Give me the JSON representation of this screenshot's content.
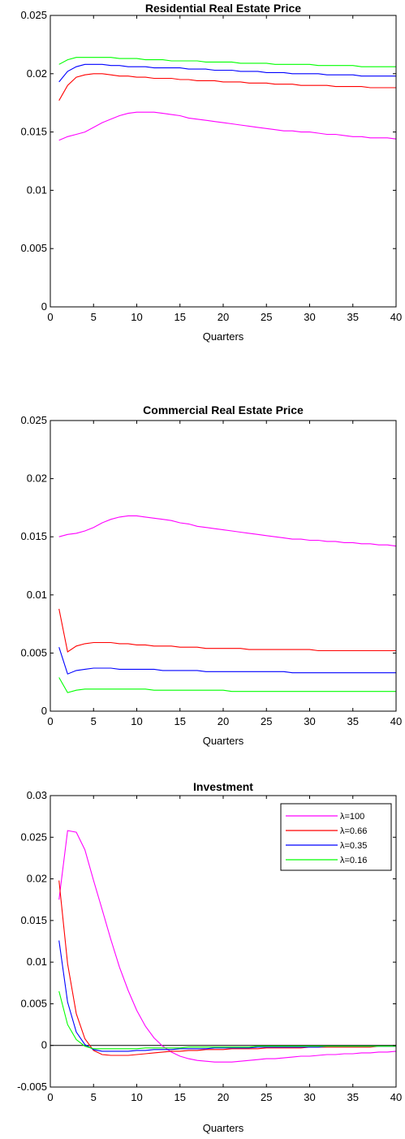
{
  "chart_data": [
    {
      "type": "line",
      "title": "Residential Real Estate Price",
      "xlabel": "Quarters",
      "ylabel": "",
      "xlim": [
        0,
        40
      ],
      "ylim": [
        0,
        0.025
      ],
      "x_ticks": [
        0,
        5,
        10,
        15,
        20,
        25,
        30,
        35,
        40
      ],
      "y_ticks": [
        0,
        0.005,
        0.01,
        0.015,
        0.02,
        0.025
      ],
      "x_tick_labels": [
        "0",
        "5",
        "10",
        "15",
        "20",
        "25",
        "30",
        "35",
        "40"
      ],
      "y_tick_labels": [
        "0",
        "0.005",
        "0.01",
        "0.015",
        "0.02",
        "0.025"
      ],
      "grid": false,
      "zero_line": false,
      "x": [
        1,
        2,
        3,
        4,
        5,
        6,
        7,
        8,
        9,
        10,
        11,
        12,
        13,
        14,
        15,
        16,
        17,
        18,
        19,
        20,
        21,
        22,
        23,
        24,
        25,
        26,
        27,
        28,
        29,
        30,
        31,
        32,
        33,
        34,
        35,
        36,
        37,
        38,
        39,
        40
      ],
      "series": [
        {
          "color": "#ff00ff",
          "values": [
            0.0143,
            0.0146,
            0.0148,
            0.015,
            0.0154,
            0.0158,
            0.0161,
            0.0164,
            0.0166,
            0.0167,
            0.0167,
            0.0167,
            0.0166,
            0.0165,
            0.0164,
            0.0162,
            0.0161,
            0.016,
            0.0159,
            0.0158,
            0.0157,
            0.0156,
            0.0155,
            0.0154,
            0.0153,
            0.0152,
            0.0151,
            0.0151,
            0.015,
            0.015,
            0.0149,
            0.0148,
            0.0148,
            0.0147,
            0.0146,
            0.0146,
            0.0145,
            0.0145,
            0.0145,
            0.0144
          ]
        },
        {
          "color": "#ff0000",
          "values": [
            0.0177,
            0.019,
            0.0197,
            0.0199,
            0.02,
            0.02,
            0.0199,
            0.0198,
            0.0198,
            0.0197,
            0.0197,
            0.0196,
            0.0196,
            0.0196,
            0.0195,
            0.0195,
            0.0194,
            0.0194,
            0.0194,
            0.0193,
            0.0193,
            0.0193,
            0.0192,
            0.0192,
            0.0192,
            0.0191,
            0.0191,
            0.0191,
            0.019,
            0.019,
            0.019,
            0.019,
            0.0189,
            0.0189,
            0.0189,
            0.0189,
            0.0188,
            0.0188,
            0.0188,
            0.0188
          ]
        },
        {
          "color": "#0000ff",
          "values": [
            0.0193,
            0.0202,
            0.0206,
            0.0208,
            0.0208,
            0.0208,
            0.0207,
            0.0207,
            0.0206,
            0.0206,
            0.0206,
            0.0205,
            0.0205,
            0.0205,
            0.0205,
            0.0204,
            0.0204,
            0.0204,
            0.0203,
            0.0203,
            0.0203,
            0.0202,
            0.0202,
            0.0202,
            0.0201,
            0.0201,
            0.0201,
            0.02,
            0.02,
            0.02,
            0.02,
            0.0199,
            0.0199,
            0.0199,
            0.0199,
            0.0198,
            0.0198,
            0.0198,
            0.0198,
            0.0198
          ]
        },
        {
          "color": "#00ff00",
          "values": [
            0.0208,
            0.0212,
            0.0214,
            0.0214,
            0.0214,
            0.0214,
            0.0214,
            0.0213,
            0.0213,
            0.0213,
            0.0212,
            0.0212,
            0.0212,
            0.0211,
            0.0211,
            0.0211,
            0.0211,
            0.021,
            0.021,
            0.021,
            0.021,
            0.0209,
            0.0209,
            0.0209,
            0.0209,
            0.0208,
            0.0208,
            0.0208,
            0.0208,
            0.0208,
            0.0207,
            0.0207,
            0.0207,
            0.0207,
            0.0207,
            0.0206,
            0.0206,
            0.0206,
            0.0206,
            0.0206
          ]
        }
      ]
    },
    {
      "type": "line",
      "title": "Commercial Real Estate Price",
      "xlabel": "Quarters",
      "ylabel": "",
      "xlim": [
        0,
        40
      ],
      "ylim": [
        0,
        0.025
      ],
      "x_ticks": [
        0,
        5,
        10,
        15,
        20,
        25,
        30,
        35,
        40
      ],
      "y_ticks": [
        0,
        0.005,
        0.01,
        0.015,
        0.02,
        0.025
      ],
      "x_tick_labels": [
        "0",
        "5",
        "10",
        "15",
        "20",
        "25",
        "30",
        "35",
        "40"
      ],
      "y_tick_labels": [
        "0",
        "0.005",
        "0.01",
        "0.015",
        "0.02",
        "0.025"
      ],
      "grid": false,
      "zero_line": false,
      "x": [
        1,
        2,
        3,
        4,
        5,
        6,
        7,
        8,
        9,
        10,
        11,
        12,
        13,
        14,
        15,
        16,
        17,
        18,
        19,
        20,
        21,
        22,
        23,
        24,
        25,
        26,
        27,
        28,
        29,
        30,
        31,
        32,
        33,
        34,
        35,
        36,
        37,
        38,
        39,
        40
      ],
      "series": [
        {
          "color": "#ff00ff",
          "values": [
            0.015,
            0.0152,
            0.0153,
            0.0155,
            0.0158,
            0.0162,
            0.0165,
            0.0167,
            0.0168,
            0.0168,
            0.0167,
            0.0166,
            0.0165,
            0.0164,
            0.0162,
            0.0161,
            0.0159,
            0.0158,
            0.0157,
            0.0156,
            0.0155,
            0.0154,
            0.0153,
            0.0152,
            0.0151,
            0.015,
            0.0149,
            0.0148,
            0.0148,
            0.0147,
            0.0147,
            0.0146,
            0.0146,
            0.0145,
            0.0145,
            0.0144,
            0.0144,
            0.0143,
            0.0143,
            0.0142
          ]
        },
        {
          "color": "#ff0000",
          "values": [
            0.0088,
            0.0051,
            0.0056,
            0.0058,
            0.0059,
            0.0059,
            0.0059,
            0.0058,
            0.0058,
            0.0057,
            0.0057,
            0.0056,
            0.0056,
            0.0056,
            0.0055,
            0.0055,
            0.0055,
            0.0054,
            0.0054,
            0.0054,
            0.0054,
            0.0054,
            0.0053,
            0.0053,
            0.0053,
            0.0053,
            0.0053,
            0.0053,
            0.0053,
            0.0053,
            0.0052,
            0.0052,
            0.0052,
            0.0052,
            0.0052,
            0.0052,
            0.0052,
            0.0052,
            0.0052,
            0.0052
          ]
        },
        {
          "color": "#0000ff",
          "values": [
            0.0055,
            0.0032,
            0.0035,
            0.0036,
            0.0037,
            0.0037,
            0.0037,
            0.0036,
            0.0036,
            0.0036,
            0.0036,
            0.0036,
            0.0035,
            0.0035,
            0.0035,
            0.0035,
            0.0035,
            0.0034,
            0.0034,
            0.0034,
            0.0034,
            0.0034,
            0.0034,
            0.0034,
            0.0034,
            0.0034,
            0.0034,
            0.0033,
            0.0033,
            0.0033,
            0.0033,
            0.0033,
            0.0033,
            0.0033,
            0.0033,
            0.0033,
            0.0033,
            0.0033,
            0.0033,
            0.0033
          ]
        },
        {
          "color": "#00ff00",
          "values": [
            0.0029,
            0.0016,
            0.0018,
            0.0019,
            0.0019,
            0.0019,
            0.0019,
            0.0019,
            0.0019,
            0.0019,
            0.0019,
            0.0018,
            0.0018,
            0.0018,
            0.0018,
            0.0018,
            0.0018,
            0.0018,
            0.0018,
            0.0018,
            0.0017,
            0.0017,
            0.0017,
            0.0017,
            0.0017,
            0.0017,
            0.0017,
            0.0017,
            0.0017,
            0.0017,
            0.0017,
            0.0017,
            0.0017,
            0.0017,
            0.0017,
            0.0017,
            0.0017,
            0.0017,
            0.0017,
            0.0017
          ]
        }
      ]
    },
    {
      "type": "line",
      "title": "Investment",
      "xlabel": "Quarters",
      "ylabel": "",
      "xlim": [
        0,
        40
      ],
      "ylim": [
        -0.005,
        0.03
      ],
      "x_ticks": [
        0,
        5,
        10,
        15,
        20,
        25,
        30,
        35,
        40
      ],
      "y_ticks": [
        -0.005,
        0,
        0.005,
        0.01,
        0.015,
        0.02,
        0.025,
        0.03
      ],
      "x_tick_labels": [
        "0",
        "5",
        "10",
        "15",
        "20",
        "25",
        "30",
        "35",
        "40"
      ],
      "y_tick_labels": [
        "-0.005",
        "0",
        "0.005",
        "0.01",
        "0.015",
        "0.02",
        "0.025",
        "0.03"
      ],
      "grid": false,
      "zero_line": true,
      "legend_position": "top-right",
      "x": [
        1,
        2,
        3,
        4,
        5,
        6,
        7,
        8,
        9,
        10,
        11,
        12,
        13,
        14,
        15,
        16,
        17,
        18,
        19,
        20,
        21,
        22,
        23,
        24,
        25,
        26,
        27,
        28,
        29,
        30,
        31,
        32,
        33,
        34,
        35,
        36,
        37,
        38,
        39,
        40
      ],
      "series": [
        {
          "name": "λ=100",
          "color": "#ff00ff",
          "values": [
            0.0175,
            0.0258,
            0.0256,
            0.0235,
            0.0198,
            0.0163,
            0.0127,
            0.0094,
            0.0066,
            0.0042,
            0.0023,
            0.0009,
            -0.0001,
            -0.0008,
            -0.0013,
            -0.0016,
            -0.0018,
            -0.0019,
            -0.002,
            -0.002,
            -0.002,
            -0.0019,
            -0.0018,
            -0.0017,
            -0.0016,
            -0.0016,
            -0.0015,
            -0.0014,
            -0.0013,
            -0.0013,
            -0.0012,
            -0.0011,
            -0.0011,
            -0.001,
            -0.001,
            -0.0009,
            -0.0009,
            -0.0008,
            -0.0008,
            -0.0007
          ]
        },
        {
          "name": "λ=0.66",
          "color": "#ff0000",
          "values": [
            0.0198,
            0.0098,
            0.0038,
            0.0008,
            -0.0006,
            -0.0011,
            -0.0012,
            -0.0012,
            -0.0012,
            -0.0011,
            -0.001,
            -0.0009,
            -0.0008,
            -0.0007,
            -0.0007,
            -0.0006,
            -0.0006,
            -0.0005,
            -0.0005,
            -0.0005,
            -0.0004,
            -0.0004,
            -0.0004,
            -0.0004,
            -0.0003,
            -0.0003,
            -0.0003,
            -0.0003,
            -0.0003,
            -0.0002,
            -0.0002,
            -0.0002,
            -0.0002,
            -0.0002,
            -0.0002,
            -0.0002,
            -0.0002,
            -0.0001,
            -0.0001,
            -0.0001
          ]
        },
        {
          "name": "λ=0.35",
          "color": "#0000ff",
          "values": [
            0.0126,
            0.0052,
            0.0016,
            0.0001,
            -0.0005,
            -0.0007,
            -0.0007,
            -0.0007,
            -0.0007,
            -0.0006,
            -0.0006,
            -0.0005,
            -0.0005,
            -0.0005,
            -0.0004,
            -0.0004,
            -0.0004,
            -0.0004,
            -0.0003,
            -0.0003,
            -0.0003,
            -0.0003,
            -0.0003,
            -0.0002,
            -0.0002,
            -0.0002,
            -0.0002,
            -0.0002,
            -0.0002,
            -0.0002,
            -0.0002,
            -0.0001,
            -0.0001,
            -0.0001,
            -0.0001,
            -0.0001,
            -0.0001,
            -0.0001,
            -0.0001,
            -0.0001
          ]
        },
        {
          "name": "λ=0.16",
          "color": "#00ff00",
          "values": [
            0.0065,
            0.0025,
            0.0007,
            -0.0001,
            -0.0004,
            -0.0004,
            -0.0004,
            -0.0004,
            -0.0004,
            -0.0004,
            -0.0003,
            -0.0003,
            -0.0003,
            -0.0003,
            -0.0003,
            -0.0002,
            -0.0002,
            -0.0002,
            -0.0002,
            -0.0002,
            -0.0002,
            -0.0002,
            -0.0002,
            -0.0001,
            -0.0001,
            -0.0001,
            -0.0001,
            -0.0001,
            -0.0001,
            -0.0001,
            -0.0001,
            -0.0001,
            -0.0001,
            -0.0001,
            -0.0001,
            -0.0001,
            -0.0001,
            -0.0001,
            -0.0001,
            -0.0001
          ]
        }
      ]
    }
  ]
}
